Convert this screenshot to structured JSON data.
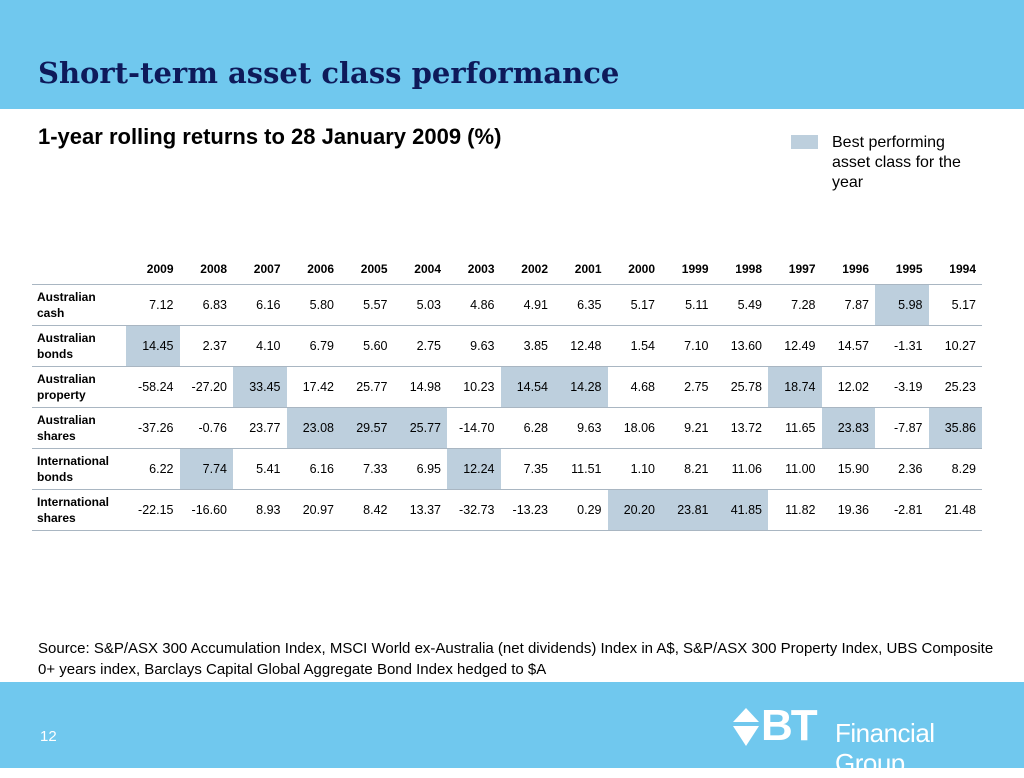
{
  "slide": {
    "title": "Short-term asset class performance",
    "subtitle": "1-year rolling returns to 28 January 2009 (%)",
    "page_number": "12",
    "accent_color": "#70c8ee",
    "highlight_color": "#bdcfdd"
  },
  "legend": {
    "label": "Best performing asset class for the year"
  },
  "table": {
    "years": [
      "2009",
      "2008",
      "2007",
      "2006",
      "2005",
      "2004",
      "2003",
      "2002",
      "2001",
      "2000",
      "1999",
      "1998",
      "1997",
      "1996",
      "1995",
      "1994"
    ],
    "rows": [
      {
        "label": "Australian cash",
        "values": [
          "7.12",
          "6.83",
          "6.16",
          "5.80",
          "5.57",
          "5.03",
          "4.86",
          "4.91",
          "6.35",
          "5.17",
          "5.11",
          "5.49",
          "7.28",
          "7.87",
          "5.98",
          "5.17"
        ],
        "best": [
          false,
          false,
          false,
          false,
          false,
          false,
          false,
          false,
          false,
          false,
          false,
          false,
          false,
          false,
          true,
          false
        ]
      },
      {
        "label": "Australian bonds",
        "values": [
          "14.45",
          "2.37",
          "4.10",
          "6.79",
          "5.60",
          "2.75",
          "9.63",
          "3.85",
          "12.48",
          "1.54",
          "7.10",
          "13.60",
          "12.49",
          "14.57",
          "-1.31",
          "10.27"
        ],
        "best": [
          true,
          false,
          false,
          false,
          false,
          false,
          false,
          false,
          false,
          false,
          false,
          false,
          false,
          false,
          false,
          false
        ]
      },
      {
        "label": "Australian property",
        "values": [
          "-58.24",
          "-27.20",
          "33.45",
          "17.42",
          "25.77",
          "14.98",
          "10.23",
          "14.54",
          "14.28",
          "4.68",
          "2.75",
          "25.78",
          "18.74",
          "12.02",
          "-3.19",
          "25.23"
        ],
        "best": [
          false,
          false,
          true,
          false,
          false,
          false,
          false,
          true,
          true,
          false,
          false,
          false,
          true,
          false,
          false,
          false
        ]
      },
      {
        "label": "Australian shares",
        "values": [
          "-37.26",
          "-0.76",
          "23.77",
          "23.08",
          "29.57",
          "25.77",
          "-14.70",
          "6.28",
          "9.63",
          "18.06",
          "9.21",
          "13.72",
          "11.65",
          "23.83",
          "-7.87",
          "35.86"
        ],
        "best": [
          false,
          false,
          false,
          true,
          true,
          true,
          false,
          false,
          false,
          false,
          false,
          false,
          false,
          true,
          false,
          true
        ]
      },
      {
        "label": "International bonds",
        "values": [
          "6.22",
          "7.74",
          "5.41",
          "6.16",
          "7.33",
          "6.95",
          "12.24",
          "7.35",
          "11.51",
          "1.10",
          "8.21",
          "11.06",
          "11.00",
          "15.90",
          "2.36",
          "8.29"
        ],
        "best": [
          false,
          true,
          false,
          false,
          false,
          false,
          true,
          false,
          false,
          false,
          false,
          false,
          false,
          false,
          false,
          false
        ]
      },
      {
        "label": "International shares",
        "values": [
          "-22.15",
          "-16.60",
          "8.93",
          "20.97",
          "8.42",
          "13.37",
          "-32.73",
          "-13.23",
          "0.29",
          "20.20",
          "23.81",
          "41.85",
          "11.82",
          "19.36",
          "-2.81",
          "21.48"
        ],
        "best": [
          false,
          false,
          false,
          false,
          false,
          false,
          false,
          false,
          false,
          true,
          true,
          true,
          false,
          false,
          false,
          false
        ]
      }
    ]
  },
  "source": "Source: S&P/ASX 300 Accumulation Index, MSCI World ex-Australia (net dividends) Index in A$, S&P/ASX 300 Property Index, UBS Composite 0+ years index, Barclays Capital Global Aggregate Bond Index hedged to $A",
  "logo": {
    "mark": "BT",
    "name": "Financial Group",
    "icon": "bt-diamond-logo-icon"
  }
}
